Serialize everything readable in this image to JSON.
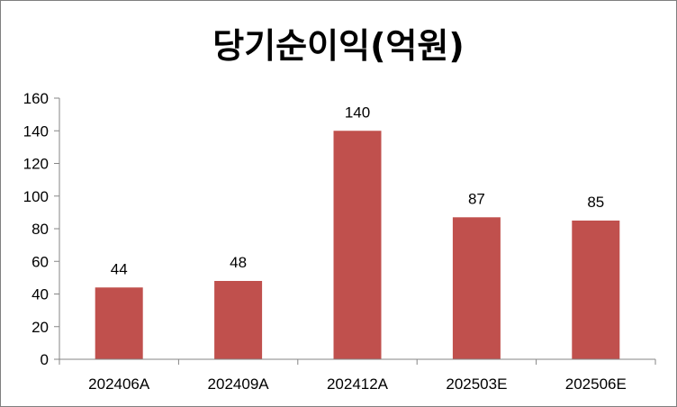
{
  "chart_data": {
    "type": "bar",
    "title": "당기순이익(억원)",
    "categories": [
      "202406A",
      "202409A",
      "202412A",
      "202503E",
      "202506E"
    ],
    "values": [
      44,
      48,
      140,
      87,
      85
    ],
    "data_labels": [
      "44",
      "48",
      "140",
      "87",
      "85"
    ],
    "ylim": [
      0,
      160
    ],
    "yticks": [
      "0",
      "20",
      "40",
      "60",
      "80",
      "100",
      "120",
      "140",
      "160"
    ],
    "grid": false,
    "legend": "none",
    "bar_color": "#c0504d",
    "axis_color": "#868686"
  }
}
